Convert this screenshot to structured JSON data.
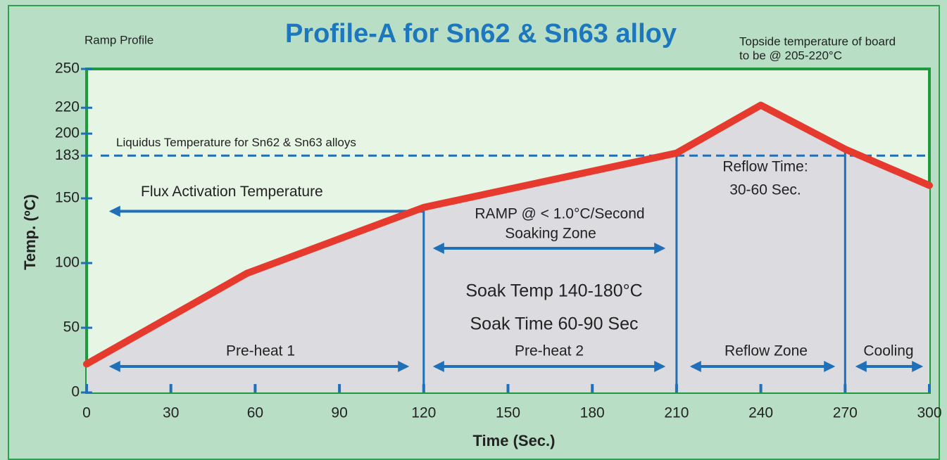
{
  "chart_data": {
    "type": "line",
    "title": "Profile-A for Sn62 & Sn63 alloy",
    "subtitle": "Ramp Profile",
    "note": [
      "Topside temperature of board",
      "to be @ 205-220°C"
    ],
    "ylabel": "Temp. (ºC)",
    "xlabel": "Time (Sec.)",
    "x": [
      0,
      57,
      120,
      210,
      240,
      270,
      300
    ],
    "series": [
      {
        "name": "Profile-A",
        "color": "#e63a2e",
        "values": [
          22,
          92,
          143,
          185,
          222,
          188,
          160
        ]
      }
    ],
    "xlim": [
      0,
      300
    ],
    "ylim": [
      0,
      250
    ],
    "xticks": [
      0,
      30,
      60,
      90,
      120,
      150,
      180,
      210,
      240,
      270,
      300
    ],
    "yticks": [
      0,
      50,
      100,
      150,
      183,
      200,
      220,
      250
    ],
    "liquidus": {
      "value": 183,
      "label": "Liquidus Temperature for Sn62 & Sn63 alloys"
    },
    "flux": {
      "value": 140,
      "label": "Flux Activation Temperature"
    },
    "zone_boundaries": [
      120,
      210,
      270
    ],
    "annotations": {
      "ramp": [
        "RAMP @ < 1.0°C/Second",
        "Soaking Zone"
      ],
      "soak": [
        "Soak Temp 140-180°C",
        "Soak Time 60-90 Sec"
      ],
      "reflow_time": [
        "Reflow Time:",
        "30-60 Sec."
      ]
    },
    "zones": [
      "Pre-heat 1",
      "Pre-heat 2",
      "Reflow Zone",
      "Cooling"
    ]
  }
}
